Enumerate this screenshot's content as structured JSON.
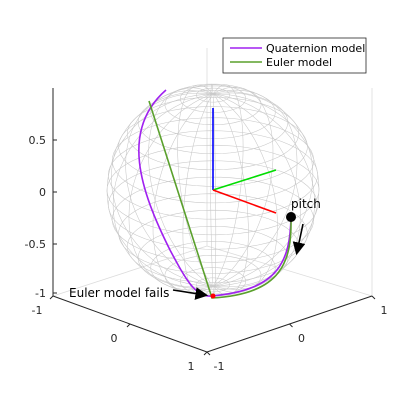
{
  "chart_data": {
    "type": "line",
    "title": "",
    "xlabel": "",
    "ylabel": "",
    "zlabel": "",
    "x_ticks": [
      "-1",
      "0",
      "1"
    ],
    "y_ticks": [
      "1",
      "0",
      "-1"
    ],
    "z_ticks": [
      "0.5",
      "0",
      "-0.5",
      "-1"
    ],
    "xlim": [
      -1,
      1
    ],
    "ylim": [
      -1,
      1
    ],
    "zlim": [
      -1,
      1
    ],
    "grid": true,
    "legend_position": "top-right",
    "colors": {
      "quaternion": "#a020f0",
      "euler": "#5aa02c",
      "axis_x": "#ff0000",
      "axis_y": "#00dd00",
      "axis_z": "#0000ff",
      "point": "#ff0000"
    },
    "series": [
      {
        "name": "Quaternion model",
        "description_points": [
          [
            0.0,
            0.7,
            -0.7
          ],
          [
            0.0,
            0.45,
            -0.89
          ],
          [
            0.0,
            0.0,
            -1.0
          ],
          [
            -0.6,
            0.0,
            -0.8
          ],
          [
            -0.95,
            0.0,
            -0.3
          ],
          [
            -0.9,
            0.0,
            0.45
          ]
        ]
      },
      {
        "name": "Euler model",
        "description_points": [
          [
            0.0,
            0.7,
            -0.7
          ],
          [
            0.0,
            0.45,
            -0.89
          ],
          [
            0.0,
            0.0,
            -1.0
          ],
          [
            -0.15,
            0.0,
            0.95
          ]
        ]
      }
    ],
    "annotations": {
      "pitch_label": "pitch",
      "fail_label": "Euler model fails"
    }
  }
}
